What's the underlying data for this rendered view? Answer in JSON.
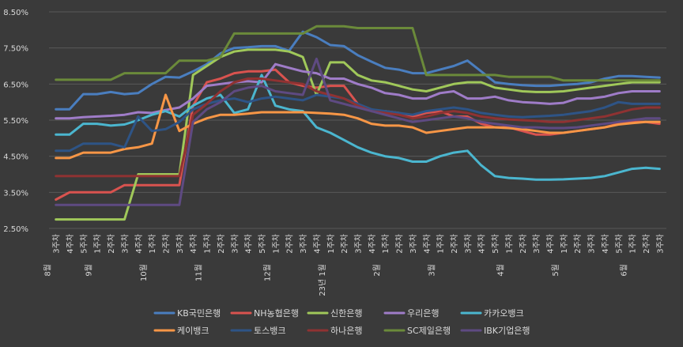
{
  "chart_data": {
    "type": "line",
    "title": "",
    "xlabel": "",
    "ylabel": "",
    "ylim": [
      2.5,
      8.5
    ],
    "y_ticks": [
      "2.50%",
      "3.50%",
      "4.50%",
      "5.50%",
      "6.50%",
      "7.50%",
      "8.50%"
    ],
    "y_tick_values": [
      2.5,
      3.5,
      4.5,
      5.5,
      6.5,
      7.5,
      8.5
    ],
    "grid": "horizontal",
    "legend_position": "bottom",
    "x": [
      "8월 3주차",
      "4주차",
      "5주차",
      "9월 1주차",
      "2주차",
      "3주차",
      "4주차",
      "10월 1주차",
      "2주차",
      "3주차",
      "4주차",
      "11월 1주차",
      "2주차",
      "3주차",
      "4주차",
      "5주차",
      "12월 1주차",
      "2주차",
      "3주차",
      "4주차",
      "23년 1월 1주차",
      "2주차",
      "3주차",
      "4주차",
      "2월 1주차",
      "2주차",
      "3주차",
      "4주차",
      "3월 1주차",
      "2주차",
      "3주차",
      "4주차",
      "5주차",
      "4월 1주차",
      "2주차",
      "3주차",
      "4주차",
      "5월 1주차",
      "2주차",
      "3주차",
      "4주차",
      "5주차",
      "6월 1주차",
      "2주차",
      "3주차"
    ],
    "x_ticks": [
      {
        "week": "3주차",
        "month": "8월"
      },
      {
        "week": "4주차",
        "month": ""
      },
      {
        "week": "5주차",
        "month": ""
      },
      {
        "week": "1주차",
        "month": "9월"
      },
      {
        "week": "2주차",
        "month": ""
      },
      {
        "week": "3주차",
        "month": ""
      },
      {
        "week": "4주차",
        "month": ""
      },
      {
        "week": "1주차",
        "month": "10월"
      },
      {
        "week": "2주차",
        "month": ""
      },
      {
        "week": "3주차",
        "month": ""
      },
      {
        "week": "4주차",
        "month": ""
      },
      {
        "week": "1주차",
        "month": "11월"
      },
      {
        "week": "2주차",
        "month": ""
      },
      {
        "week": "3주차",
        "month": ""
      },
      {
        "week": "4주차",
        "month": ""
      },
      {
        "week": "5주차",
        "month": ""
      },
      {
        "week": "1주차",
        "month": "12월"
      },
      {
        "week": "2주차",
        "month": ""
      },
      {
        "week": "3주차",
        "month": ""
      },
      {
        "week": "4주차",
        "month": ""
      },
      {
        "week": "1주차",
        "month": "23년 1월"
      },
      {
        "week": "2주차",
        "month": ""
      },
      {
        "week": "3주차",
        "month": ""
      },
      {
        "week": "4주차",
        "month": ""
      },
      {
        "week": "1주차",
        "month": "2월"
      },
      {
        "week": "2주차",
        "month": ""
      },
      {
        "week": "3주차",
        "month": ""
      },
      {
        "week": "4주차",
        "month": ""
      },
      {
        "week": "1주차",
        "month": "3월"
      },
      {
        "week": "2주차",
        "month": ""
      },
      {
        "week": "3주차",
        "month": ""
      },
      {
        "week": "4주차",
        "month": ""
      },
      {
        "week": "5주차",
        "month": ""
      },
      {
        "week": "1주차",
        "month": "4월"
      },
      {
        "week": "2주차",
        "month": ""
      },
      {
        "week": "3주차",
        "month": ""
      },
      {
        "week": "4주차",
        "month": ""
      },
      {
        "week": "1주차",
        "month": "5월"
      },
      {
        "week": "2주차",
        "month": ""
      },
      {
        "week": "3주차",
        "month": ""
      },
      {
        "week": "4주차",
        "month": ""
      },
      {
        "week": "5주차",
        "month": ""
      },
      {
        "week": "1주차",
        "month": "6월"
      },
      {
        "week": "2주차",
        "month": ""
      },
      {
        "week": "3주차",
        "month": ""
      }
    ],
    "series": [
      {
        "name": "KB국민은행",
        "color": "#4a7ebf",
        "values": [
          5.8,
          5.8,
          6.22,
          6.22,
          6.28,
          6.22,
          6.25,
          6.5,
          6.7,
          6.68,
          6.85,
          7.05,
          7.35,
          7.5,
          7.52,
          7.55,
          7.55,
          7.42,
          7.95,
          7.8,
          7.58,
          7.55,
          7.3,
          7.12,
          6.95,
          6.9,
          6.8,
          6.8,
          6.9,
          7.0,
          7.15,
          6.85,
          6.55,
          6.5,
          6.47,
          6.45,
          6.45,
          6.48,
          6.5,
          6.55,
          6.65,
          6.72,
          6.72,
          6.7,
          6.68
        ]
      },
      {
        "name": "NH농협은행",
        "color": "#d9534f",
        "values": [
          3.3,
          3.5,
          3.5,
          3.5,
          3.5,
          3.7,
          3.7,
          3.7,
          3.7,
          3.7,
          5.9,
          6.55,
          6.65,
          6.8,
          6.85,
          6.85,
          6.9,
          6.55,
          6.45,
          6.4,
          6.45,
          6.45,
          5.95,
          5.75,
          5.75,
          5.7,
          5.6,
          5.7,
          5.75,
          5.6,
          5.6,
          5.4,
          5.3,
          5.3,
          5.2,
          5.1,
          5.1,
          5.15,
          5.2,
          5.25,
          5.3,
          5.4,
          5.45,
          5.45,
          5.4
        ]
      },
      {
        "name": "신한은행",
        "color": "#a0c85a",
        "values": [
          2.75,
          2.75,
          2.75,
          2.75,
          2.75,
          2.75,
          4.0,
          4.0,
          4.0,
          4.0,
          6.75,
          7.0,
          7.25,
          7.4,
          7.45,
          7.45,
          7.45,
          7.4,
          7.25,
          6.2,
          7.1,
          7.1,
          6.75,
          6.6,
          6.55,
          6.45,
          6.35,
          6.3,
          6.4,
          6.5,
          6.55,
          6.55,
          6.4,
          6.35,
          6.3,
          6.28,
          6.28,
          6.3,
          6.35,
          6.4,
          6.45,
          6.5,
          6.55,
          6.55,
          6.55
        ]
      },
      {
        "name": "우리은행",
        "color": "#9f7cc8",
        "values": [
          5.55,
          5.55,
          5.58,
          5.6,
          5.62,
          5.65,
          5.72,
          5.7,
          5.78,
          5.85,
          6.1,
          6.45,
          6.5,
          6.55,
          6.58,
          6.55,
          7.05,
          6.95,
          6.85,
          6.8,
          6.65,
          6.65,
          6.5,
          6.4,
          6.25,
          6.2,
          6.1,
          6.1,
          6.25,
          6.3,
          6.1,
          6.1,
          6.15,
          6.05,
          6.0,
          5.98,
          5.95,
          5.98,
          6.1,
          6.1,
          6.15,
          6.25,
          6.3,
          6.3,
          6.3
        ]
      },
      {
        "name": "카카오뱅크",
        "color": "#4bb6cf",
        "values": [
          5.1,
          5.1,
          5.4,
          5.4,
          5.35,
          5.38,
          5.5,
          5.65,
          5.75,
          5.6,
          5.9,
          6.1,
          6.2,
          5.7,
          5.8,
          6.75,
          5.9,
          5.8,
          5.75,
          5.3,
          5.15,
          4.95,
          4.75,
          4.6,
          4.5,
          4.45,
          4.35,
          4.35,
          4.5,
          4.6,
          4.65,
          4.25,
          3.95,
          3.9,
          3.88,
          3.85,
          3.85,
          3.86,
          3.88,
          3.9,
          3.95,
          4.05,
          4.15,
          4.18,
          4.15
        ]
      },
      {
        "name": "케이뱅크",
        "color": "#f79646",
        "values": [
          4.45,
          4.45,
          4.6,
          4.6,
          4.6,
          4.7,
          4.75,
          4.85,
          6.2,
          5.2,
          5.4,
          5.55,
          5.65,
          5.65,
          5.68,
          5.72,
          5.72,
          5.72,
          5.72,
          5.7,
          5.68,
          5.65,
          5.55,
          5.4,
          5.35,
          5.35,
          5.3,
          5.15,
          5.2,
          5.25,
          5.3,
          5.3,
          5.3,
          5.28,
          5.25,
          5.2,
          5.15,
          5.15,
          5.2,
          5.25,
          5.3,
          5.38,
          5.42,
          5.45,
          5.45
        ]
      },
      {
        "name": "토스뱅크",
        "color": "#2e5486",
        "values": [
          4.65,
          4.65,
          4.85,
          4.85,
          4.85,
          4.75,
          5.6,
          5.2,
          5.25,
          5.45,
          5.8,
          5.95,
          6.05,
          6.1,
          6.0,
          6.1,
          6.15,
          6.1,
          6.05,
          6.2,
          6.15,
          6.1,
          5.95,
          5.8,
          5.75,
          5.7,
          5.65,
          5.75,
          5.8,
          5.85,
          5.8,
          5.7,
          5.65,
          5.6,
          5.58,
          5.6,
          5.62,
          5.65,
          5.7,
          5.75,
          5.85,
          6.0,
          5.95,
          5.95,
          5.95
        ]
      },
      {
        "name": "하나은행",
        "color": "#8f3232",
        "values": [
          3.95,
          3.95,
          3.95,
          3.95,
          3.95,
          3.95,
          3.95,
          3.95,
          3.95,
          3.95,
          5.65,
          5.95,
          6.3,
          6.55,
          6.65,
          6.65,
          6.6,
          6.55,
          6.5,
          6.3,
          6.2,
          6.1,
          5.9,
          5.75,
          5.7,
          5.65,
          5.55,
          5.6,
          5.7,
          5.75,
          5.7,
          5.6,
          5.55,
          5.52,
          5.5,
          5.48,
          5.45,
          5.45,
          5.5,
          5.55,
          5.6,
          5.7,
          5.8,
          5.85,
          5.85
        ]
      },
      {
        "name": "SC제일은행",
        "color": "#6b8a3a",
        "values": [
          6.62,
          6.62,
          6.62,
          6.62,
          6.62,
          6.8,
          6.8,
          6.8,
          6.8,
          7.15,
          7.15,
          7.15,
          7.25,
          7.9,
          7.9,
          7.9,
          7.9,
          7.9,
          7.9,
          8.1,
          8.1,
          8.1,
          8.05,
          8.05,
          8.05,
          8.05,
          8.05,
          6.75,
          6.75,
          6.75,
          6.75,
          6.75,
          6.75,
          6.7,
          6.7,
          6.7,
          6.7,
          6.6,
          6.6,
          6.6,
          6.6,
          6.6,
          6.6,
          6.6,
          6.6
        ]
      },
      {
        "name": "IBK기업은행",
        "color": "#5e4a82",
        "values": [
          3.15,
          3.15,
          3.15,
          3.15,
          3.15,
          3.15,
          3.15,
          3.15,
          3.15,
          3.15,
          5.45,
          5.8,
          6.0,
          6.3,
          6.4,
          6.45,
          6.3,
          6.25,
          6.2,
          7.2,
          6.05,
          5.95,
          5.85,
          5.75,
          5.65,
          5.55,
          5.45,
          5.5,
          5.55,
          5.6,
          5.55,
          5.45,
          5.4,
          5.35,
          5.3,
          5.3,
          5.28,
          5.28,
          5.3,
          5.35,
          5.4,
          5.45,
          5.5,
          5.55,
          5.55
        ]
      }
    ]
  }
}
